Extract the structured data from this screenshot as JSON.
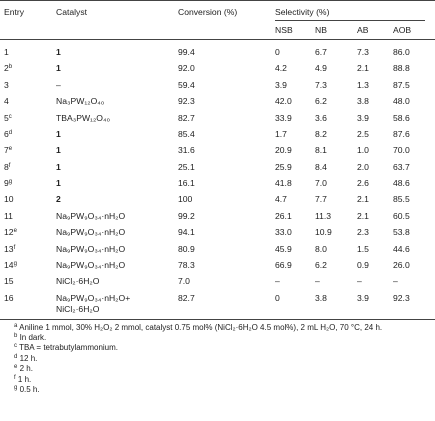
{
  "table": {
    "header": {
      "entry": "Entry",
      "catalyst": "Catalyst",
      "conversion": "Conversion (%)",
      "selectivity": "Selectivity (%)",
      "sub": [
        "NSB",
        "NB",
        "AB",
        "AOB"
      ]
    },
    "rows": [
      {
        "entry": "1",
        "catalyst": "1",
        "bold": true,
        "cells": [
          "99.4",
          "0",
          "6.7",
          "7.3",
          "86.0"
        ]
      },
      {
        "entry": "2",
        "mark": "b",
        "catalyst": "1",
        "bold": true,
        "cells": [
          "92.0",
          "4.2",
          "4.9",
          "2.1",
          "88.8"
        ]
      },
      {
        "entry": "3",
        "catalyst": "–",
        "cells": [
          "59.4",
          "3.9",
          "7.3",
          "1.3",
          "87.5"
        ]
      },
      {
        "entry": "4",
        "catalyst": "Na₃PW₁₂O₄₀",
        "cells": [
          "92.3",
          "42.0",
          "6.2",
          "3.8",
          "48.0"
        ]
      },
      {
        "entry": "5",
        "mark": "c",
        "catalyst": "TBA₃PW₁₂O₄₀",
        "cells": [
          "82.7",
          "33.9",
          "3.6",
          "3.9",
          "58.6"
        ]
      },
      {
        "entry": "6",
        "mark": "d",
        "catalyst": "1",
        "bold": true,
        "cells": [
          "85.4",
          "1.7",
          "8.2",
          "2.5",
          "87.6"
        ]
      },
      {
        "entry": "7",
        "mark": "e",
        "catalyst": "1",
        "bold": true,
        "cells": [
          "31.6",
          "20.9",
          "8.1",
          "1.0",
          "70.0"
        ]
      },
      {
        "entry": "8",
        "mark": "f",
        "catalyst": "1",
        "bold": true,
        "cells": [
          "25.1",
          "25.9",
          "8.4",
          "2.0",
          "63.7"
        ]
      },
      {
        "entry": "9",
        "mark": "g",
        "catalyst": "1",
        "bold": true,
        "cells": [
          "16.1",
          "41.8",
          "7.0",
          "2.6",
          "48.6"
        ]
      },
      {
        "entry": "10",
        "catalyst": "2",
        "bold": true,
        "cells": [
          "100",
          "4.7",
          "7.7",
          "2.1",
          "85.5"
        ]
      },
      {
        "entry": "11",
        "catalyst": "Na₉PW₉O₃₄·nH₂O",
        "cells": [
          "99.2",
          "26.1",
          "11.3",
          "2.1",
          "60.5"
        ]
      },
      {
        "entry": "12",
        "mark": "e",
        "catalyst": "Na₉PW₉O₃₄·nH₂O",
        "cells": [
          "94.1",
          "33.0",
          "10.9",
          "2.3",
          "53.8"
        ]
      },
      {
        "entry": "13",
        "mark": "f",
        "catalyst": "Na₉PW₉O₃₄·nH₂O",
        "cells": [
          "80.9",
          "45.9",
          "8.0",
          "1.5",
          "44.6"
        ]
      },
      {
        "entry": "14",
        "mark": "g",
        "catalyst": "Na₉PW₉O₃₄·nH₂O",
        "cells": [
          "78.3",
          "66.9",
          "6.2",
          "0.9",
          "26.0"
        ]
      },
      {
        "entry": "15",
        "catalyst": "NiCl₂·6H₂O",
        "cells": [
          "7.0",
          "–",
          "–",
          "–",
          "–"
        ]
      },
      {
        "entry": "16",
        "catalyst": "Na₉PW₉O₃₄·nH₂O+\nNiCl₂·6H₂O",
        "cells": [
          "82.7",
          "0",
          "3.8",
          "3.9",
          "92.3"
        ]
      }
    ],
    "footnotes": [
      {
        "mark": "a",
        "text": "Aniline 1 mmol, 30% H₂O₂ 2 mmol, catalyst 0.75 mol% (NiCl₂·6H₂O 4.5 mol%), 2 mL H₂O, 70 °C, 24 h."
      },
      {
        "mark": "b",
        "text": "In dark."
      },
      {
        "mark": "c",
        "text": "TBA = tetrabutylammonium."
      },
      {
        "mark": "d",
        "text": "12 h."
      },
      {
        "mark": "e",
        "text": "2 h."
      },
      {
        "mark": "f",
        "text": "1 h."
      },
      {
        "mark": "g",
        "text": "0.5 h."
      }
    ]
  }
}
